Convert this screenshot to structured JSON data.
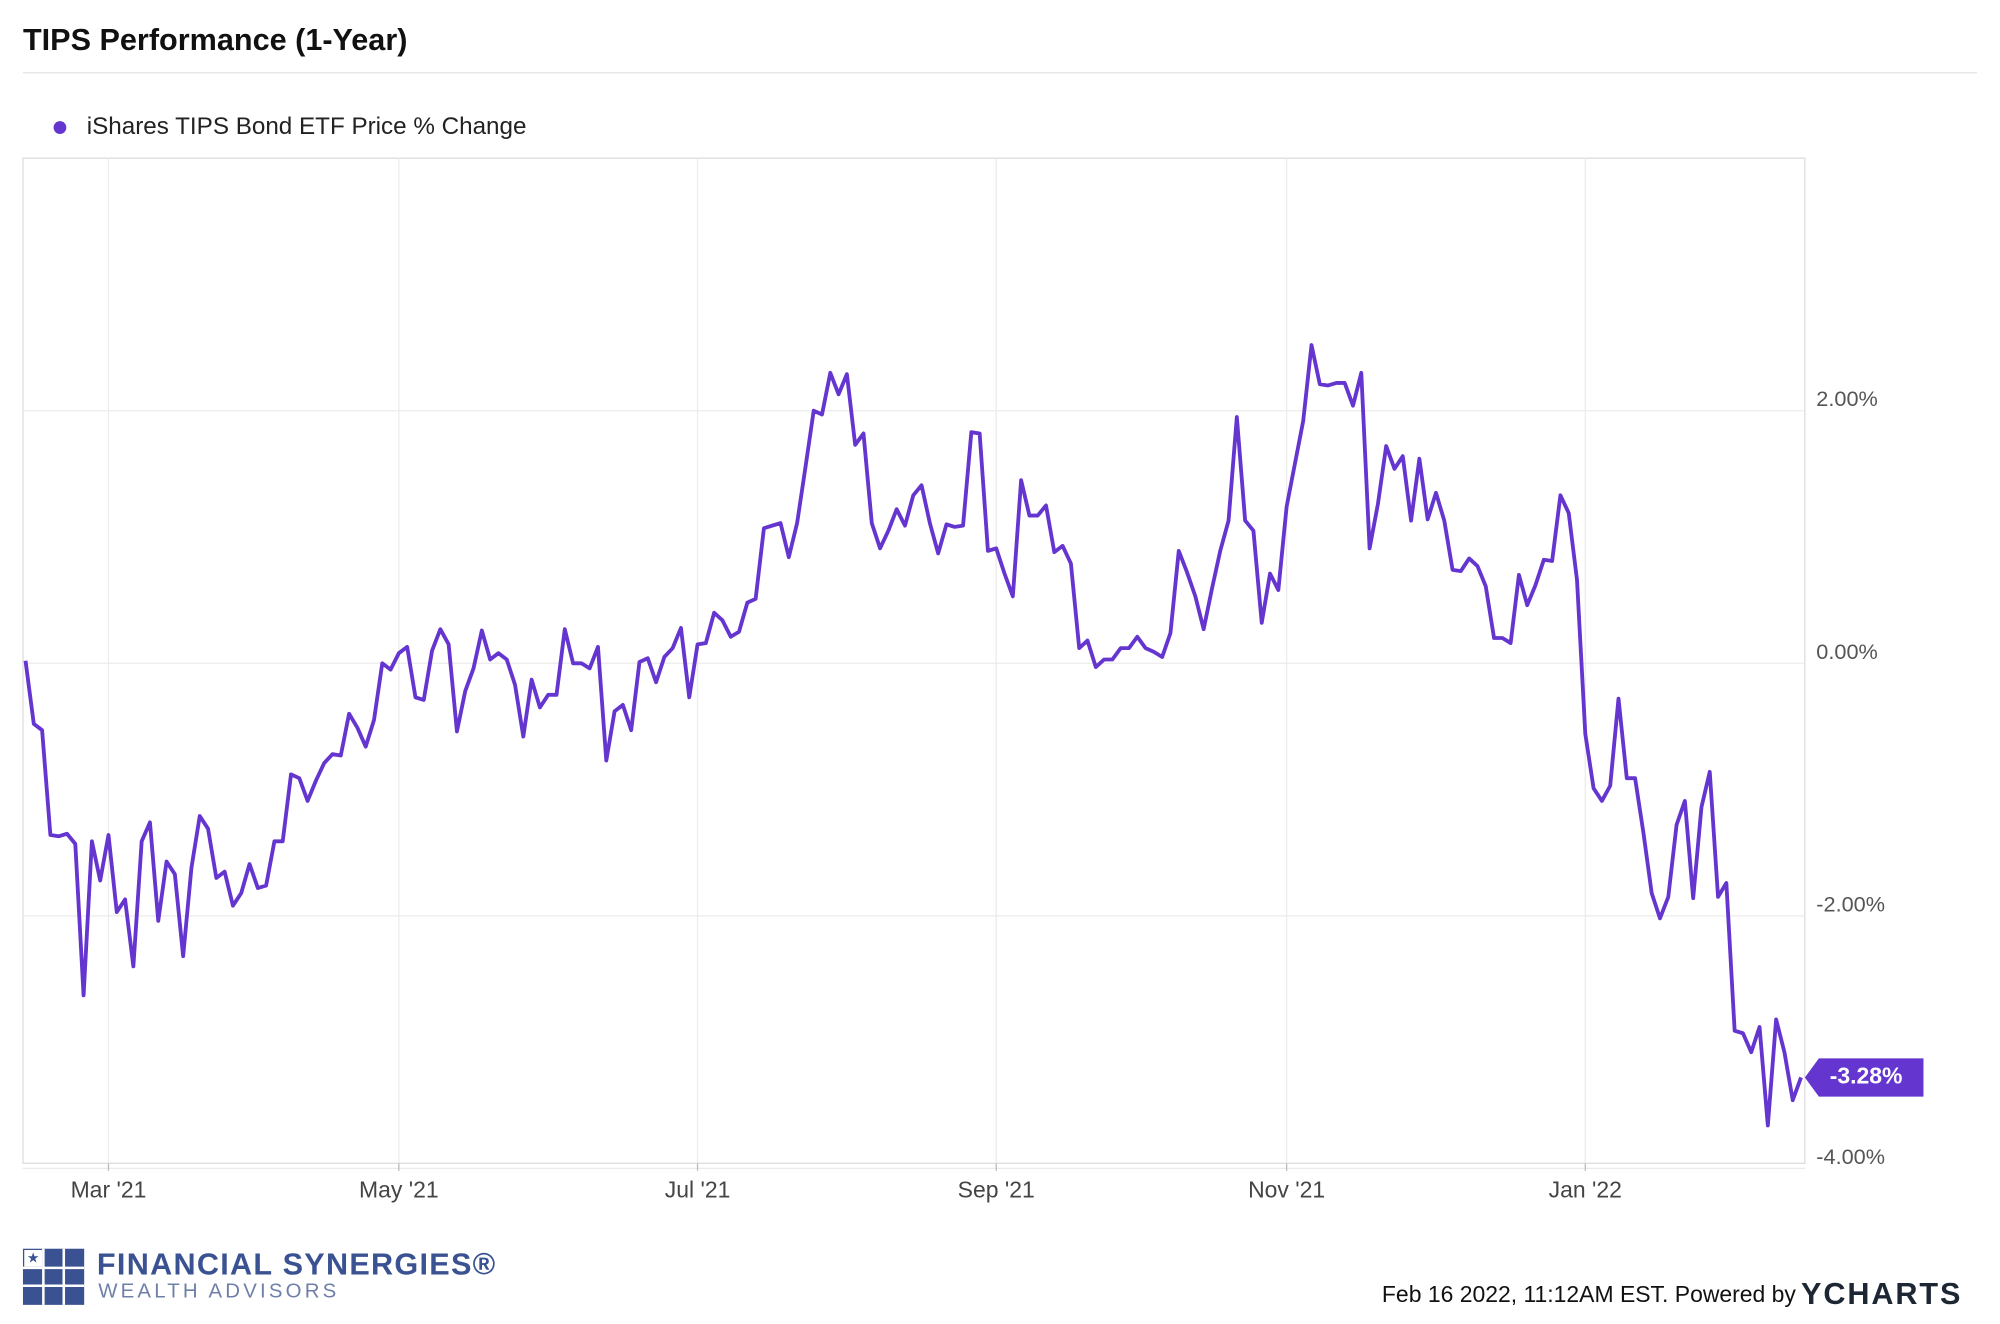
{
  "chart_data": {
    "type": "line",
    "title": "TIPS Performance (1-Year)",
    "categories": [
      null,
      null,
      null,
      null,
      null,
      null,
      null,
      null,
      null,
      null,
      "Mar '21",
      null,
      null,
      null,
      null,
      null,
      null,
      null,
      null,
      null,
      null,
      null,
      null,
      null,
      null,
      null,
      null,
      null,
      null,
      null,
      null,
      null,
      null,
      null,
      null,
      null,
      null,
      null,
      null,
      null,
      null,
      null,
      null,
      null,
      null,
      "May '21",
      null,
      null,
      null,
      null,
      null,
      null,
      null,
      null,
      null,
      null,
      null,
      null,
      null,
      null,
      null,
      null,
      null,
      null,
      null,
      null,
      null,
      null,
      null,
      null,
      null,
      null,
      null,
      null,
      null,
      null,
      null,
      null,
      null,
      null,
      null,
      "Jul '21",
      null,
      null,
      null,
      null,
      null,
      null,
      null,
      null,
      null,
      null,
      null,
      null,
      null,
      null,
      null,
      null,
      null,
      null,
      null,
      null,
      null,
      null,
      null,
      null,
      null,
      null,
      null,
      null,
      null,
      null,
      null,
      null,
      null,
      null,
      null,
      "Sep '21",
      null,
      null,
      null,
      null,
      null,
      null,
      null,
      null,
      null,
      null,
      null,
      null,
      null,
      null,
      null,
      null,
      null,
      null,
      null,
      null,
      null,
      null,
      null,
      null,
      null,
      null,
      null,
      null,
      null,
      null,
      null,
      null,
      null,
      null,
      "Nov '21",
      null,
      null,
      null,
      null,
      null,
      null,
      null,
      null,
      null,
      null,
      null,
      null,
      null,
      null,
      null,
      null,
      null,
      null,
      null,
      null,
      null,
      null,
      null,
      null,
      null,
      null,
      null,
      null,
      null,
      null,
      null,
      null,
      null,
      null,
      null,
      "Jan '22",
      null,
      null,
      null,
      null,
      null,
      null,
      null,
      null,
      null,
      null,
      null,
      null,
      null,
      null,
      null,
      null,
      null,
      null,
      null,
      null,
      null,
      null,
      null,
      null,
      null,
      null
    ],
    "series": [
      {
        "name": "iShares TIPS Bond ETF Price % Change",
        "color": "#6535d0",
        "values": [
          0.02,
          -0.48,
          -0.53,
          -1.36,
          -1.37,
          -1.35,
          -1.43,
          -2.63,
          -1.41,
          -1.72,
          -1.36,
          -1.97,
          -1.87,
          -2.4,
          -1.41,
          -1.26,
          -2.04,
          -1.57,
          -1.67,
          -2.32,
          -1.62,
          -1.21,
          -1.31,
          -1.7,
          -1.65,
          -1.92,
          -1.82,
          -1.59,
          -1.78,
          -1.76,
          -1.41,
          -1.41,
          -0.88,
          -0.91,
          -1.09,
          -0.93,
          -0.79,
          -0.72,
          -0.73,
          -0.4,
          -0.51,
          -0.66,
          -0.45,
          0,
          -0.05,
          0.08,
          0.13,
          -0.27,
          -0.29,
          0.1,
          0.27,
          0.15,
          -0.54,
          -0.22,
          -0.04,
          0.26,
          0.03,
          0.08,
          0.03,
          -0.17,
          -0.58,
          -0.13,
          -0.35,
          -0.25,
          -0.25,
          0.27,
          0,
          0,
          -0.04,
          0.13,
          -0.77,
          -0.38,
          -0.33,
          -0.53,
          0.01,
          0.04,
          -0.15,
          0.05,
          0.12,
          0.28,
          -0.27,
          0.15,
          0.16,
          0.4,
          0.34,
          0.21,
          0.25,
          0.48,
          0.51,
          1.07,
          1.09,
          1.11,
          0.84,
          1.11,
          1.55,
          2.0,
          1.97,
          2.3,
          2.13,
          2.29,
          1.73,
          1.82,
          1.11,
          0.91,
          1.05,
          1.22,
          1.09,
          1.33,
          1.41,
          1.11,
          0.87,
          1.1,
          1.08,
          1.09,
          1.83,
          1.82,
          0.89,
          0.91,
          0.71,
          0.53,
          1.45,
          1.17,
          1.17,
          1.25,
          0.88,
          0.93,
          0.79,
          0.12,
          0.18,
          -0.03,
          0.03,
          0.03,
          0.12,
          0.12,
          0.21,
          0.12,
          0.09,
          0.05,
          0.24,
          0.89,
          0.72,
          0.53,
          0.27,
          0.59,
          0.89,
          1.13,
          1.95,
          1.13,
          1.05,
          0.32,
          0.71,
          0.58,
          1.24,
          1.58,
          1.92,
          2.52,
          2.21,
          2.2,
          2.22,
          2.22,
          2.04,
          2.3,
          0.91,
          1.26,
          1.72,
          1.54,
          1.64,
          1.13,
          1.62,
          1.14,
          1.35,
          1.13,
          0.74,
          0.73,
          0.83,
          0.77,
          0.61,
          0.2,
          0.2,
          0.16,
          0.7,
          0.46,
          0.62,
          0.82,
          0.81,
          1.33,
          1.19,
          0.66,
          -0.56,
          -0.99,
          -1.09,
          -0.97,
          -0.28,
          -0.91,
          -0.91,
          -1.34,
          -1.82,
          -2.02,
          -1.85,
          -1.28,
          -1.09,
          -1.86,
          -1.14,
          -0.86,
          -1.85,
          -1.74,
          -2.91,
          -2.93,
          -3.08,
          -2.88,
          -3.66,
          -2.82,
          -3.08,
          -3.46,
          -3.28
        ],
        "value_labels": [
          null,
          null,
          null,
          null,
          null,
          null,
          null,
          null,
          null,
          null,
          null,
          null,
          null,
          null,
          null,
          null,
          null,
          null,
          null,
          null,
          null,
          null,
          null,
          null,
          null,
          null,
          null,
          null,
          null,
          null,
          null,
          null,
          null,
          null,
          null,
          null,
          null,
          null,
          null,
          null,
          null,
          null,
          null,
          null,
          null,
          null,
          null,
          null,
          null,
          null,
          null,
          null,
          null,
          null,
          null,
          null,
          null,
          null,
          null,
          null,
          null,
          null,
          null,
          null,
          null,
          null,
          null,
          null,
          null,
          null,
          null,
          null,
          null,
          null,
          null,
          null,
          null,
          null,
          null,
          null,
          null,
          null,
          null,
          null,
          null,
          null,
          null,
          null,
          null,
          null,
          null,
          null,
          null,
          null,
          null,
          null,
          null,
          null,
          null,
          null,
          null,
          null,
          null,
          null,
          null,
          null,
          null,
          null,
          null,
          null,
          null,
          null,
          null,
          null,
          null,
          null,
          null,
          null,
          null,
          null,
          null,
          null,
          null,
          null,
          null,
          null,
          null,
          null,
          null,
          null,
          null,
          null,
          null,
          null,
          null,
          null,
          null,
          null,
          null,
          null,
          null,
          null,
          null,
          null,
          null,
          null,
          null,
          null,
          null,
          null,
          null,
          null,
          null,
          null,
          null,
          null,
          null,
          null,
          null,
          null,
          null,
          null,
          null,
          null,
          null,
          null,
          null,
          null,
          null,
          null,
          null,
          null,
          null,
          null,
          null,
          null,
          null,
          null,
          null,
          null,
          null,
          null,
          null,
          null,
          null,
          null,
          null,
          null,
          null,
          null,
          null,
          null,
          null,
          null,
          null,
          null,
          null,
          null,
          null,
          null,
          null,
          null,
          null,
          null,
          null,
          null,
          null,
          null,
          null,
          null,
          null,
          null,
          null,
          null,
          "-3.28%"
        ]
      }
    ],
    "ylim": [
      -4,
      4
    ],
    "yticks": [
      {
        "value": -4,
        "label": "-4.00%"
      },
      {
        "value": -2,
        "label": "-2.00%"
      },
      {
        "value": 0,
        "label": "0.00%"
      },
      {
        "value": 2,
        "label": "2.00%"
      }
    ],
    "grid": true
  },
  "branding": {
    "firm": "FINANCIAL SYNERGIES®",
    "tagline": "WEALTH ADVISORS",
    "timestamp": "Feb 16 2022, 11:12AM EST. Powered by",
    "provider": "YCHARTS"
  }
}
